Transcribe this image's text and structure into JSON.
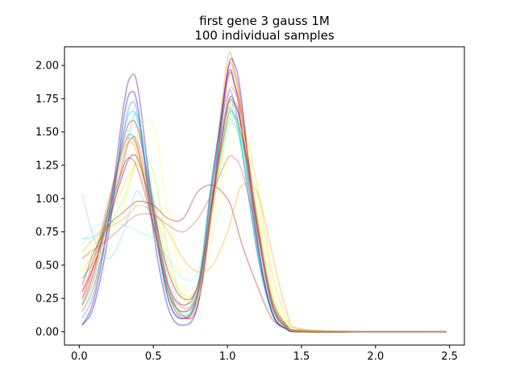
{
  "chart_data": {
    "type": "line",
    "title": "first gene 3 gauss 1M",
    "subtitle": "100 individual samples",
    "xlabel": "",
    "ylabel": "",
    "xlim": [
      -0.1,
      2.6
    ],
    "ylim": [
      -0.1,
      2.14
    ],
    "xticks": [
      "0.0",
      "0.5",
      "1.0",
      "1.5",
      "2.0",
      "2.5"
    ],
    "xtick_values": [
      0.0,
      0.5,
      1.0,
      1.5,
      2.0,
      2.5
    ],
    "yticks": [
      "0.00",
      "0.25",
      "0.50",
      "0.75",
      "1.00",
      "1.25",
      "1.50",
      "1.75",
      "2.00"
    ],
    "ytick_values": [
      0.0,
      0.25,
      0.5,
      0.75,
      1.0,
      1.25,
      1.5,
      1.75,
      2.0
    ],
    "grid": false,
    "legend": "none",
    "colormap": "jet",
    "x_range": [
      0.02,
      2.48
    ],
    "sample_count": 100,
    "series_summary": {
      "peak1_x_range": [
        0.3,
        0.45
      ],
      "peak1_height_range": [
        0.9,
        1.93
      ],
      "trough_x_range": [
        0.6,
        0.75
      ],
      "peak2_x_range": [
        0.95,
        1.05
      ],
      "peak2_height_range": [
        1.1,
        2.05
      ],
      "tail_value_after_1_5": 0.0
    },
    "series": [
      {
        "color": "#d01000",
        "x": [
          0.02,
          0.1,
          0.2,
          0.3,
          0.35,
          0.4,
          0.5,
          0.6,
          0.7,
          0.8,
          0.9,
          1.0,
          1.05,
          1.1,
          1.2,
          1.3,
          1.4,
          1.5,
          2.0,
          2.48
        ],
        "y": [
          0.2,
          0.45,
          0.95,
          1.45,
          1.58,
          1.5,
          0.95,
          0.35,
          0.12,
          0.2,
          0.95,
          1.88,
          1.85,
          1.6,
          0.85,
          0.25,
          0.05,
          0.01,
          0.0,
          0.0
        ]
      },
      {
        "color": "#8b0000",
        "x": [
          0.02,
          0.1,
          0.2,
          0.3,
          0.35,
          0.4,
          0.5,
          0.6,
          0.7,
          0.8,
          0.9,
          1.0,
          1.05,
          1.1,
          1.2,
          1.3,
          1.4,
          1.5,
          2.0,
          2.48
        ],
        "y": [
          0.3,
          0.5,
          0.85,
          1.2,
          1.32,
          1.28,
          0.9,
          0.45,
          0.25,
          0.35,
          1.0,
          1.7,
          1.72,
          1.5,
          0.8,
          0.22,
          0.04,
          0.01,
          0.0,
          0.0
        ]
      },
      {
        "color": "#ff4500",
        "x": [
          0.02,
          0.1,
          0.2,
          0.3,
          0.35,
          0.4,
          0.5,
          0.6,
          0.7,
          0.8,
          0.9,
          1.0,
          1.05,
          1.1,
          1.2,
          1.3,
          1.4,
          1.5,
          2.0,
          2.48
        ],
        "y": [
          0.15,
          0.35,
          0.8,
          1.3,
          1.45,
          1.4,
          0.9,
          0.3,
          0.1,
          0.25,
          1.05,
          1.95,
          1.93,
          1.65,
          0.8,
          0.2,
          0.03,
          0.0,
          0.0,
          0.0
        ]
      },
      {
        "color": "#ff8c00",
        "x": [
          0.02,
          0.1,
          0.2,
          0.3,
          0.35,
          0.4,
          0.5,
          0.6,
          0.7,
          0.8,
          0.9,
          1.0,
          1.05,
          1.1,
          1.2,
          1.3,
          1.4,
          1.5,
          2.0,
          2.48
        ],
        "y": [
          0.25,
          0.45,
          0.9,
          1.35,
          1.42,
          1.3,
          0.8,
          0.3,
          0.15,
          0.3,
          1.1,
          2.04,
          1.95,
          1.6,
          0.7,
          0.15,
          0.02,
          0.0,
          0.0,
          0.0
        ]
      },
      {
        "color": "#ffd700",
        "x": [
          0.02,
          0.1,
          0.2,
          0.3,
          0.35,
          0.4,
          0.5,
          0.6,
          0.7,
          0.8,
          0.9,
          1.0,
          1.05,
          1.1,
          1.2,
          1.3,
          1.4,
          1.5,
          2.0,
          2.48
        ],
        "y": [
          0.45,
          0.6,
          0.85,
          1.1,
          1.2,
          1.25,
          1.0,
          0.5,
          0.28,
          0.35,
          0.9,
          1.6,
          1.7,
          1.6,
          1.1,
          0.45,
          0.1,
          0.02,
          0.0,
          0.0
        ]
      },
      {
        "color": "#adff2f",
        "x": [
          0.02,
          0.1,
          0.2,
          0.3,
          0.35,
          0.4,
          0.5,
          0.6,
          0.7,
          0.8,
          0.9,
          1.0,
          1.05,
          1.1,
          1.2,
          1.3,
          1.4,
          1.5,
          2.0,
          2.48
        ],
        "y": [
          0.55,
          0.65,
          0.8,
          1.0,
          1.15,
          1.3,
          1.2,
          0.6,
          0.25,
          0.3,
          0.95,
          1.55,
          1.6,
          1.45,
          0.9,
          0.3,
          0.05,
          0.01,
          0.0,
          0.0
        ]
      },
      {
        "color": "#40e0d0",
        "x": [
          0.02,
          0.1,
          0.2,
          0.3,
          0.35,
          0.4,
          0.5,
          0.6,
          0.7,
          0.8,
          0.9,
          1.0,
          1.05,
          1.1,
          1.2,
          1.3,
          1.4,
          1.5,
          2.0,
          2.48
        ],
        "y": [
          0.7,
          0.72,
          0.85,
          1.25,
          1.55,
          1.6,
          1.0,
          0.35,
          0.15,
          0.35,
          1.15,
          1.7,
          1.65,
          1.4,
          0.7,
          0.18,
          0.03,
          0.0,
          0.0,
          0.0
        ]
      },
      {
        "color": "#1e90ff",
        "x": [
          0.02,
          0.1,
          0.2,
          0.3,
          0.35,
          0.4,
          0.5,
          0.6,
          0.7,
          0.8,
          0.9,
          1.0,
          1.05,
          1.1,
          1.2,
          1.3,
          1.4,
          1.5,
          2.0,
          2.48
        ],
        "y": [
          0.1,
          0.3,
          0.85,
          1.5,
          1.72,
          1.6,
          0.85,
          0.25,
          0.1,
          0.3,
          1.2,
          1.78,
          1.7,
          1.35,
          0.6,
          0.14,
          0.02,
          0.0,
          0.0,
          0.0
        ]
      },
      {
        "color": "#0000cd",
        "x": [
          0.02,
          0.1,
          0.2,
          0.3,
          0.35,
          0.4,
          0.5,
          0.6,
          0.7,
          0.8,
          0.9,
          1.0,
          1.05,
          1.1,
          1.2,
          1.3,
          1.4,
          1.5,
          2.0,
          2.48
        ],
        "y": [
          0.05,
          0.2,
          0.75,
          1.6,
          1.8,
          1.65,
          0.75,
          0.18,
          0.05,
          0.2,
          1.0,
          1.95,
          2.0,
          1.7,
          0.7,
          0.15,
          0.02,
          0.0,
          0.0,
          0.0
        ]
      },
      {
        "color": "#4b0082",
        "x": [
          0.02,
          0.1,
          0.2,
          0.3,
          0.35,
          0.4,
          0.5,
          0.6,
          0.7,
          0.8,
          0.9,
          1.0,
          1.05,
          1.1,
          1.2,
          1.3,
          1.4,
          1.5,
          2.0,
          2.48
        ],
        "y": [
          0.05,
          0.25,
          0.85,
          1.7,
          1.92,
          1.8,
          0.9,
          0.25,
          0.1,
          0.28,
          1.15,
          1.92,
          1.85,
          1.5,
          0.65,
          0.15,
          0.02,
          0.0,
          0.0,
          0.0
        ]
      },
      {
        "color": "#b22222",
        "x": [
          0.02,
          0.1,
          0.2,
          0.3,
          0.35,
          0.4,
          0.5,
          0.6,
          0.7,
          0.8,
          0.9,
          1.0,
          1.05,
          1.1,
          1.2,
          1.3,
          1.4,
          1.5,
          2.0,
          2.48
        ],
        "y": [
          0.35,
          0.6,
          0.8,
          0.9,
          0.95,
          0.98,
          0.95,
          0.85,
          0.85,
          1.05,
          1.1,
          1.0,
          0.85,
          0.65,
          0.35,
          0.1,
          0.02,
          0.0,
          0.0,
          0.0
        ]
      },
      {
        "color": "#ffa500",
        "x": [
          0.02,
          0.1,
          0.2,
          0.3,
          0.35,
          0.4,
          0.5,
          0.6,
          0.7,
          0.8,
          0.9,
          1.0,
          1.05,
          1.1,
          1.2,
          1.3,
          1.4,
          1.5,
          2.0,
          2.48
        ],
        "y": [
          0.6,
          0.7,
          0.78,
          0.85,
          0.9,
          0.95,
          0.9,
          0.75,
          0.55,
          0.45,
          0.5,
          0.75,
          0.95,
          1.1,
          1.05,
          0.6,
          0.15,
          0.02,
          0.0,
          0.0
        ]
      },
      {
        "color": "#87ceeb",
        "x": [
          0.02,
          0.1,
          0.2,
          0.3,
          0.35,
          0.4,
          0.5,
          0.6,
          0.7,
          0.8,
          0.9,
          1.0,
          1.05,
          1.1,
          1.2,
          1.3,
          1.4,
          1.5,
          2.0,
          2.48
        ],
        "y": [
          1.03,
          0.7,
          0.55,
          0.75,
          0.95,
          1.05,
          0.8,
          0.4,
          0.2,
          0.35,
          1.05,
          1.55,
          1.55,
          1.35,
          0.75,
          0.2,
          0.03,
          0.0,
          0.0,
          0.0
        ]
      },
      {
        "color": "#2e8b57",
        "x": [
          0.02,
          0.1,
          0.2,
          0.3,
          0.35,
          0.4,
          0.5,
          0.6,
          0.7,
          0.8,
          0.9,
          1.0,
          1.05,
          1.1,
          1.2,
          1.3,
          1.4,
          1.5,
          2.0,
          2.48
        ],
        "y": [
          0.4,
          0.55,
          0.95,
          1.4,
          1.48,
          1.35,
          0.8,
          0.3,
          0.15,
          0.3,
          1.0,
          1.6,
          1.62,
          1.45,
          0.8,
          0.22,
          0.04,
          0.0,
          0.0,
          0.0
        ]
      },
      {
        "color": "#7fffd4",
        "x": [
          0.02,
          0.1,
          0.2,
          0.3,
          0.35,
          0.4,
          0.5,
          0.6,
          0.7,
          0.8,
          0.9,
          1.0,
          1.05,
          1.1,
          1.2,
          1.3,
          1.4,
          1.5,
          2.0,
          2.48
        ],
        "y": [
          0.65,
          0.78,
          0.82,
          0.8,
          0.78,
          0.75,
          0.7,
          0.55,
          0.4,
          0.45,
          0.95,
          1.5,
          1.55,
          1.4,
          0.85,
          0.25,
          0.04,
          0.0,
          0.0,
          0.0
        ]
      },
      {
        "color": "#dc143c",
        "x": [
          0.02,
          0.1,
          0.2,
          0.3,
          0.35,
          0.4,
          0.5,
          0.6,
          0.7,
          0.8,
          0.9,
          1.0,
          1.05,
          1.1,
          1.2,
          1.3,
          1.4,
          1.5,
          2.0,
          2.48
        ],
        "y": [
          0.25,
          0.5,
          0.9,
          1.25,
          1.3,
          1.2,
          0.8,
          0.35,
          0.2,
          0.35,
          1.0,
          1.68,
          1.7,
          1.5,
          0.8,
          0.2,
          0.03,
          0.0,
          0.0,
          0.0
        ]
      },
      {
        "color": "#ffff66",
        "x": [
          0.02,
          0.1,
          0.2,
          0.3,
          0.35,
          0.4,
          0.5,
          0.6,
          0.7,
          0.8,
          0.9,
          1.0,
          1.05,
          1.1,
          1.2,
          1.3,
          1.4,
          1.5,
          2.0,
          2.48
        ],
        "y": [
          0.5,
          0.55,
          0.7,
          0.95,
          1.2,
          1.5,
          1.55,
          0.9,
          0.35,
          0.25,
          0.7,
          1.3,
          1.5,
          1.5,
          1.0,
          0.35,
          0.06,
          0.01,
          0.0,
          0.0
        ]
      },
      {
        "color": "#00ced1",
        "x": [
          0.02,
          0.1,
          0.2,
          0.3,
          0.35,
          0.4,
          0.5,
          0.6,
          0.7,
          0.8,
          0.9,
          1.0,
          1.05,
          1.1,
          1.2,
          1.3,
          1.4,
          1.5,
          2.0,
          2.48
        ],
        "y": [
          0.2,
          0.4,
          0.9,
          1.5,
          1.65,
          1.55,
          0.9,
          0.3,
          0.12,
          0.3,
          1.15,
          1.65,
          1.6,
          1.35,
          0.6,
          0.15,
          0.02,
          0.0,
          0.0,
          0.0
        ]
      },
      {
        "color": "#cd5c5c",
        "x": [
          0.02,
          0.1,
          0.2,
          0.3,
          0.35,
          0.4,
          0.5,
          0.6,
          0.7,
          0.8,
          0.9,
          1.0,
          1.05,
          1.1,
          1.2,
          1.3,
          1.4,
          1.5,
          2.0,
          2.48
        ],
        "y": [
          0.55,
          0.62,
          0.7,
          0.8,
          0.85,
          0.88,
          0.88,
          0.8,
          0.75,
          0.85,
          1.05,
          1.3,
          1.3,
          1.2,
          0.75,
          0.25,
          0.05,
          0.01,
          0.0,
          0.0
        ]
      },
      {
        "color": "#ff6347",
        "x": [
          0.02,
          0.1,
          0.2,
          0.3,
          0.35,
          0.4,
          0.5,
          0.6,
          0.7,
          0.8,
          0.9,
          1.0,
          1.05,
          1.1,
          1.2,
          1.3,
          1.4,
          1.5,
          2.0,
          2.48
        ],
        "y": [
          0.3,
          0.55,
          1.0,
          1.4,
          1.45,
          1.35,
          0.85,
          0.35,
          0.18,
          0.3,
          0.95,
          1.75,
          1.8,
          1.6,
          0.85,
          0.22,
          0.04,
          0.0,
          0.0,
          0.0
        ]
      }
    ]
  }
}
